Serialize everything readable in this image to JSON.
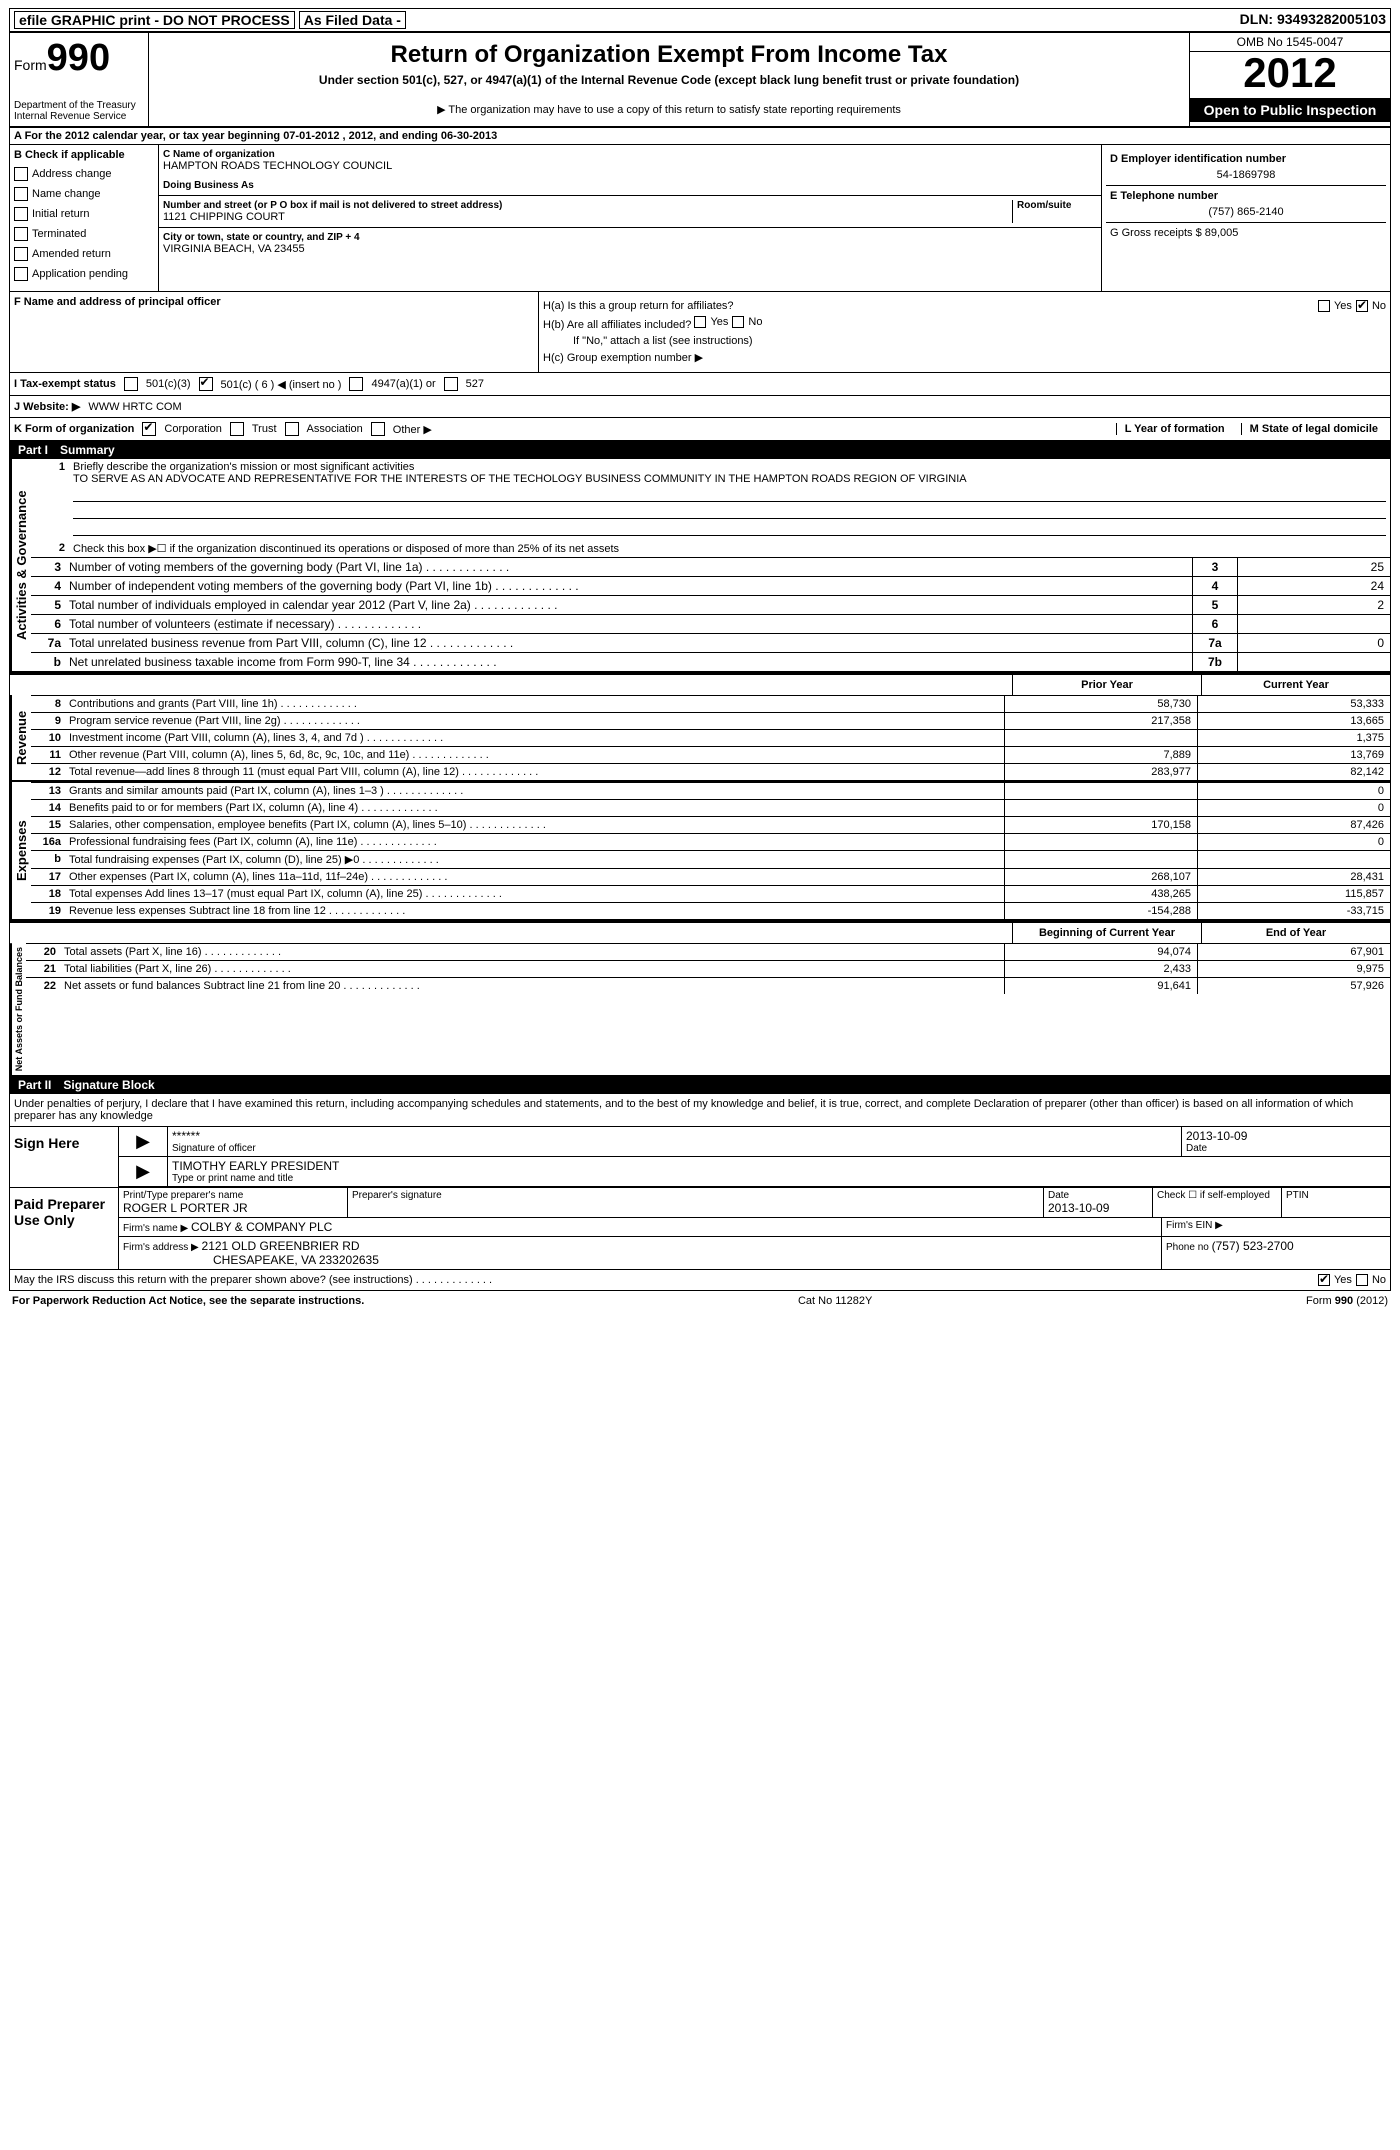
{
  "topbar": {
    "efile": "efile GRAPHIC print - DO NOT PROCESS",
    "asfiled": "As Filed Data -",
    "dln_label": "DLN:",
    "dln": "93493282005103"
  },
  "header": {
    "form_word": "Form",
    "form_num": "990",
    "dept1": "Department of the Treasury",
    "dept2": "Internal Revenue Service",
    "title": "Return of Organization Exempt From Income Tax",
    "subtitle": "Under section 501(c), 527, or 4947(a)(1) of the Internal Revenue Code (except black lung benefit trust or private foundation)",
    "note": "▶ The organization may have to use a copy of this return to satisfy state reporting requirements",
    "omb": "OMB No 1545-0047",
    "year": "2012",
    "open": "Open to Public Inspection"
  },
  "section_a": "A  For the 2012 calendar year, or tax year beginning 07-01-2012    , 2012, and ending 06-30-2013",
  "checkcol": {
    "label": "B  Check if applicable",
    "items": [
      "Address change",
      "Name change",
      "Initial return",
      "Terminated",
      "Amended return",
      "Application pending"
    ]
  },
  "namecol": {
    "c_label": "C Name of organization",
    "org_name": "HAMPTON ROADS TECHNOLOGY COUNCIL",
    "dba_label": "Doing Business As",
    "dba": "",
    "street_label": "Number and street (or P O  box if mail is not delivered to street address)",
    "room_label": "Room/suite",
    "street": "1121 CHIPPING COURT",
    "city_label": "City or town, state or country, and ZIP + 4",
    "city": "VIRGINIA BEACH, VA  23455",
    "f_label": "F  Name and address of principal officer"
  },
  "rightcol": {
    "d_label": "D Employer identification number",
    "ein": "54-1869798",
    "e_label": "E Telephone number",
    "phone": "(757) 865-2140",
    "g_label": "G Gross receipts $",
    "gross": "89,005"
  },
  "h": {
    "ha": "H(a)  Is this a group return for affiliates?",
    "hb": "H(b)  Are all affiliates included?",
    "hb_note": "If \"No,\" attach a list  (see instructions)",
    "hc": "H(c)  Group exemption number ▶",
    "yes": "Yes",
    "no": "No"
  },
  "status": {
    "i": "I  Tax-exempt status",
    "opts": [
      "501(c)(3)",
      "501(c) ( 6 ) ◀ (insert no )",
      "4947(a)(1) or",
      "527"
    ]
  },
  "website": {
    "j": "J  Website: ▶",
    "url": "WWW HRTC COM"
  },
  "orgform": {
    "k": "K Form of organization",
    "opts": [
      "Corporation",
      "Trust",
      "Association",
      "Other ▶"
    ],
    "l": "L Year of formation",
    "m": "M State of legal domicile"
  },
  "part1": {
    "num": "Part I",
    "title": "Summary"
  },
  "summary": {
    "l1_label": "Briefly describe the organization's mission or most significant activities",
    "l1_text": "TO SERVE AS AN ADVOCATE AND REPRESENTATIVE FOR THE INTERESTS OF THE TECHOLOGY BUSINESS COMMUNITY IN THE HAMPTON ROADS REGION OF VIRGINIA",
    "l2": "Check this box ▶☐ if the organization discontinued its operations or disposed of more than 25% of its net assets",
    "rows": [
      {
        "n": "3",
        "t": "Number of voting members of the governing body (Part VI, line 1a)",
        "b": "3",
        "v": "25"
      },
      {
        "n": "4",
        "t": "Number of independent voting members of the governing body (Part VI, line 1b)",
        "b": "4",
        "v": "24"
      },
      {
        "n": "5",
        "t": "Total number of individuals employed in calendar year 2012 (Part V, line 2a)",
        "b": "5",
        "v": "2"
      },
      {
        "n": "6",
        "t": "Total number of volunteers (estimate if necessary)",
        "b": "6",
        "v": ""
      },
      {
        "n": "7a",
        "t": "Total unrelated business revenue from Part VIII, column (C), line 12",
        "b": "7a",
        "v": "0"
      },
      {
        "n": "b",
        "t": "Net unrelated business taxable income from Form 990-T, line 34",
        "b": "7b",
        "v": ""
      }
    ]
  },
  "cols": {
    "prior": "Prior Year",
    "current": "Current Year",
    "begin": "Beginning of Current Year",
    "end": "End of Year"
  },
  "revenue": [
    {
      "n": "8",
      "t": "Contributions and grants (Part VIII, line 1h)",
      "p": "58,730",
      "c": "53,333"
    },
    {
      "n": "9",
      "t": "Program service revenue (Part VIII, line 2g)",
      "p": "217,358",
      "c": "13,665"
    },
    {
      "n": "10",
      "t": "Investment income (Part VIII, column (A), lines 3, 4, and 7d )",
      "p": "",
      "c": "1,375"
    },
    {
      "n": "11",
      "t": "Other revenue (Part VIII, column (A), lines 5, 6d, 8c, 9c, 10c, and 11e)",
      "p": "7,889",
      "c": "13,769"
    },
    {
      "n": "12",
      "t": "Total revenue—add lines 8 through 11 (must equal Part VIII, column (A), line 12)",
      "p": "283,977",
      "c": "82,142"
    }
  ],
  "expenses": [
    {
      "n": "13",
      "t": "Grants and similar amounts paid (Part IX, column (A), lines 1–3 )",
      "p": "",
      "c": "0"
    },
    {
      "n": "14",
      "t": "Benefits paid to or for members (Part IX, column (A), line 4)",
      "p": "",
      "c": "0"
    },
    {
      "n": "15",
      "t": "Salaries, other compensation, employee benefits (Part IX, column (A), lines 5–10)",
      "p": "170,158",
      "c": "87,426"
    },
    {
      "n": "16a",
      "t": "Professional fundraising fees (Part IX, column (A), line 11e)",
      "p": "",
      "c": "0"
    },
    {
      "n": "b",
      "t": "Total fundraising expenses (Part IX, column (D), line 25) ▶0",
      "p": "",
      "c": ""
    },
    {
      "n": "17",
      "t": "Other expenses (Part IX, column (A), lines 11a–11d, 11f–24e)",
      "p": "268,107",
      "c": "28,431"
    },
    {
      "n": "18",
      "t": "Total expenses  Add lines 13–17 (must equal Part IX, column (A), line 25)",
      "p": "438,265",
      "c": "115,857"
    },
    {
      "n": "19",
      "t": "Revenue less expenses  Subtract line 18 from line 12",
      "p": "-154,288",
      "c": "-33,715"
    }
  ],
  "netassets": [
    {
      "n": "20",
      "t": "Total assets (Part X, line 16)",
      "p": "94,074",
      "c": "67,901"
    },
    {
      "n": "21",
      "t": "Total liabilities (Part X, line 26)",
      "p": "2,433",
      "c": "9,975"
    },
    {
      "n": "22",
      "t": "Net assets or fund balances  Subtract line 21 from line 20",
      "p": "91,641",
      "c": "57,926"
    }
  ],
  "vlabels": {
    "ag": "Activities & Governance",
    "rev": "Revenue",
    "exp": "Expenses",
    "na": "Net Assets or Fund Balances"
  },
  "part2": {
    "num": "Part II",
    "title": "Signature Block"
  },
  "sig": {
    "declaration": "Under penalties of perjury, I declare that I have examined this return, including accompanying schedules and statements, and to the best of my knowledge and belief, it is true, correct, and complete  Declaration of preparer (other than officer) is based on all information of which preparer has any knowledge",
    "sign_here": "Sign Here",
    "sig_stars": "******",
    "sig_officer_label": "Signature of officer",
    "sig_date": "2013-10-09",
    "date_label": "Date",
    "officer_name": "TIMOTHY EARLY PRESIDENT",
    "officer_label": "Type or print name and title",
    "paid": "Paid Preparer Use Only",
    "prep_name_label": "Print/Type preparer's name",
    "prep_name": "ROGER L PORTER JR",
    "prep_sig_label": "Preparer's signature",
    "prep_date": "2013-10-09",
    "self_emp": "Check ☐ if self-employed",
    "ptin": "PTIN",
    "firm_name_label": "Firm's name    ▶",
    "firm_name": "COLBY & COMPANY PLC",
    "firm_ein_label": "Firm's EIN ▶",
    "firm_addr_label": "Firm's address ▶",
    "firm_addr1": "2121 OLD GREENBRIER RD",
    "firm_addr2": "CHESAPEAKE, VA  233202635",
    "firm_phone_label": "Phone no",
    "firm_phone": "(757) 523-2700",
    "discuss": "May the IRS discuss this return with the preparer shown above? (see instructions)"
  },
  "footer": {
    "pra": "For Paperwork Reduction Act Notice, see the separate instructions.",
    "cat": "Cat No  11282Y",
    "form": "Form 990 (2012)"
  }
}
